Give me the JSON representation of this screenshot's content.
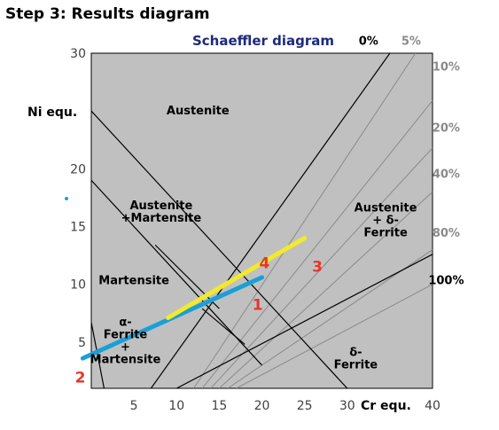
{
  "header": {
    "step_title": "Step 3: Results diagram"
  },
  "colors": {
    "plot_bg": "#c0c0c0",
    "main_lines": "#000000",
    "ferrite_lines": "#8a8a8a",
    "title_color": "#1d2a7a",
    "blue_line": "#1a9fd6",
    "yellow_line": "#f2ea2a",
    "point_label_color": "#e5352e",
    "ferrite_label_strong": "#000000",
    "ferrite_label_weak": "#8a8a8a",
    "stray_dot": "#1a9fd6"
  },
  "chart_data": {
    "type": "line",
    "title": "Schaeffler diagram",
    "xlabel": "Cr equ.",
    "ylabel": "Ni equ.",
    "xlim": [
      0,
      40
    ],
    "ylim": [
      1,
      30
    ],
    "x_ticks": [
      5,
      10,
      15,
      20,
      25,
      30,
      40
    ],
    "y_ticks": [
      5,
      10,
      15,
      20,
      30
    ],
    "boundary_lines": [
      {
        "points": [
          [
            0,
            25
          ],
          [
            30,
            1
          ]
        ]
      },
      {
        "points": [
          [
            0,
            19
          ],
          [
            20,
            3
          ]
        ]
      },
      {
        "points": [
          [
            7,
            1
          ],
          [
            35,
            30
          ]
        ]
      },
      {
        "points": [
          [
            0,
            6.7
          ],
          [
            1.5,
            1
          ]
        ]
      },
      {
        "points": [
          [
            10,
            1
          ],
          [
            40,
            12.6
          ]
        ]
      },
      {
        "points": [
          [
            7.5,
            13.4
          ],
          [
            15,
            7.9
          ]
        ]
      },
      {
        "points": [
          [
            13,
            7.9
          ],
          [
            18,
            4.8
          ]
        ]
      }
    ],
    "ferrite_lines": [
      {
        "label": "5%",
        "points": [
          [
            12,
            1
          ],
          [
            38,
            30
          ]
        ]
      },
      {
        "label": "10%",
        "points": [
          [
            13,
            1
          ],
          [
            40,
            25.9
          ]
        ]
      },
      {
        "label": "20%",
        "points": [
          [
            14,
            1
          ],
          [
            40,
            21.8
          ]
        ]
      },
      {
        "label": "40%",
        "points": [
          [
            15,
            1
          ],
          [
            40,
            18
          ]
        ]
      },
      {
        "label": "80%",
        "points": [
          [
            16,
            1
          ],
          [
            40,
            13
          ]
        ]
      },
      {
        "label": "100%",
        "points": [
          [
            17,
            1
          ],
          [
            40,
            10
          ]
        ]
      }
    ],
    "ferrite_labels": [
      {
        "label": "0%",
        "x": 32.5,
        "y": 31.1,
        "strong": true
      },
      {
        "label": "5%",
        "x": 37.5,
        "y": 31.1,
        "strong": false
      },
      {
        "label": "10%",
        "x": 41.6,
        "y": 28.9,
        "strong": false
      },
      {
        "label": "20%",
        "x": 41.6,
        "y": 23.6,
        "strong": false
      },
      {
        "label": "40%",
        "x": 41.6,
        "y": 19.6,
        "strong": false
      },
      {
        "label": "80%",
        "x": 41.6,
        "y": 14.5,
        "strong": false
      },
      {
        "label": "100%",
        "x": 41.6,
        "y": 10.4,
        "strong": true
      }
    ],
    "regions": [
      {
        "lines": [
          "Austenite"
        ],
        "x": 12.5,
        "y": 24.7
      },
      {
        "lines": [
          "Austenite",
          "+Martensite"
        ],
        "x": 8.2,
        "y": 16.5
      },
      {
        "lines": [
          "Martensite"
        ],
        "x": 5.0,
        "y": 10.0
      },
      {
        "lines": [
          "Austenite",
          "+ δ-",
          "Ferrite"
        ],
        "x": 34.5,
        "y": 16.3
      },
      {
        "lines": [
          "α-",
          "Ferrite",
          "+",
          "Martensite"
        ],
        "x": 4.0,
        "y": 6.4
      },
      {
        "lines": [
          "δ-",
          "Ferrite"
        ],
        "x": 31.0,
        "y": 3.8
      }
    ],
    "series": [
      {
        "color": "blue",
        "points": [
          [
            -1,
            3.6
          ],
          [
            20,
            10.6
          ]
        ]
      },
      {
        "color": "yellow",
        "points": [
          [
            9,
            7.1
          ],
          [
            25,
            14
          ]
        ]
      }
    ],
    "point_labels": [
      {
        "label": "1",
        "x": 19.5,
        "y": 7.8
      },
      {
        "label": "2",
        "x": -1.3,
        "y": 1.5
      },
      {
        "label": "3",
        "x": 26.5,
        "y": 11.1
      },
      {
        "label": "4",
        "x": 20.3,
        "y": 11.4
      }
    ],
    "legend": "none",
    "grid": false
  }
}
